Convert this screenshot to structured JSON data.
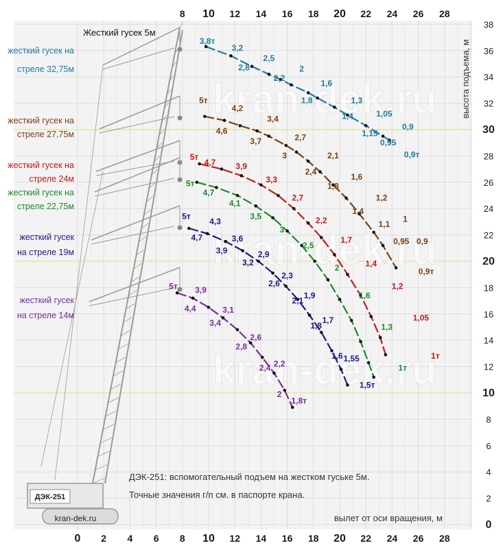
{
  "chart_data": {
    "type": "line",
    "title": "ДЭК-251: вспомогательный подъем на жестком гуське 5м.",
    "subtitle": "Точные значения г/п см. в паспорте крана.",
    "xlabel": "вылет от оси вращения, м",
    "ylabel": "высота подъема, м",
    "xlim": [
      0,
      29
    ],
    "ylim": [
      0,
      38
    ],
    "x_ticks_top": [
      "8",
      "10",
      "12",
      "14",
      "16",
      "18",
      "20",
      "22",
      "24",
      "26",
      "28"
    ],
    "x_ticks_bottom": [
      "0",
      "2",
      "4",
      "6",
      "8",
      "10",
      "12",
      "14",
      "16",
      "18",
      "20",
      "22",
      "24",
      "26",
      "28"
    ],
    "y_ticks": [
      "0",
      "2",
      "4",
      "6",
      "8",
      "10",
      "12",
      "14",
      "16",
      "18",
      "20",
      "22",
      "24",
      "26",
      "28",
      "30",
      "32",
      "34",
      "36",
      "38"
    ],
    "jib_label": "Жесткий гусек 5м",
    "crane_model": "ДЭК-251",
    "watermark": "kran-dek.ru",
    "site": "kran-dek.ru",
    "colors": {
      "grid": "#dddddd",
      "plot_bg": "#f3f3f3",
      "crane": "#9a9a9a"
    },
    "series": [
      {
        "name": "жесткий гусек на стреле 32,75м",
        "label_lines": [
          "жесткий гусек на",
          "стреле 32,75м"
        ],
        "color": "#1f7a9f",
        "points": [
          [
            9.8,
            36.3
          ],
          [
            11.7,
            35.6
          ],
          [
            13.3,
            34.8
          ],
          [
            14.6,
            34.2
          ],
          [
            15.5,
            33.8
          ],
          [
            16.3,
            33.4
          ],
          [
            17.6,
            32.8
          ],
          [
            18.3,
            32.4
          ],
          [
            19.6,
            31.7
          ],
          [
            20.6,
            31.1
          ],
          [
            22.0,
            30.3
          ],
          [
            23.3,
            29.5
          ],
          [
            23.8,
            29.2
          ]
        ],
        "load_labels": [
          {
            "text": "3,8т",
            "x": 9.9,
            "y": 36.5
          },
          {
            "text": "3,2",
            "x": 12.2,
            "y": 36.0
          },
          {
            "text": "2,8",
            "x": 12.7,
            "y": 34.5
          },
          {
            "text": "2,5",
            "x": 14.6,
            "y": 35.2
          },
          {
            "text": "2,2",
            "x": 15.4,
            "y": 33.7
          },
          {
            "text": "2",
            "x": 17.1,
            "y": 34.4
          },
          {
            "text": "1,8",
            "x": 17.5,
            "y": 32.0
          },
          {
            "text": "1,6",
            "x": 19.0,
            "y": 33.3
          },
          {
            "text": "1,4",
            "x": 20.6,
            "y": 30.8
          },
          {
            "text": "1,3",
            "x": 21.3,
            "y": 32.0
          },
          {
            "text": "1,15",
            "x": 22.3,
            "y": 29.5
          },
          {
            "text": "1,05",
            "x": 23.4,
            "y": 31.0
          },
          {
            "text": "0,95",
            "x": 23.7,
            "y": 28.8
          },
          {
            "text": "0,9",
            "x": 25.2,
            "y": 30.0
          },
          {
            "text": "0,9т",
            "x": 25.5,
            "y": 27.9
          }
        ]
      },
      {
        "name": "жесткий гусек на стреле 27,75м",
        "label_lines": [
          "жесткий гусек на",
          "стреле 27,75м"
        ],
        "color": "#7a3f14",
        "points": [
          [
            9.7,
            31.0
          ],
          [
            11.2,
            30.7
          ],
          [
            12.4,
            30.3
          ],
          [
            13.7,
            29.9
          ],
          [
            14.6,
            29.5
          ],
          [
            15.9,
            28.8
          ],
          [
            16.7,
            28.3
          ],
          [
            17.6,
            27.6
          ],
          [
            18.5,
            26.8
          ],
          [
            19.5,
            25.8
          ],
          [
            20.5,
            24.8
          ],
          [
            21.5,
            23.6
          ],
          [
            22.6,
            22.2
          ],
          [
            23.3,
            21.2
          ],
          [
            24.3,
            19.5
          ]
        ],
        "load_labels": [
          {
            "text": "5т",
            "x": 9.6,
            "y": 32.0
          },
          {
            "text": "4,2",
            "x": 12.2,
            "y": 31.4
          },
          {
            "text": "4,6",
            "x": 11.0,
            "y": 29.7
          },
          {
            "text": "3,4",
            "x": 14.9,
            "y": 30.6
          },
          {
            "text": "3,7",
            "x": 13.6,
            "y": 28.9
          },
          {
            "text": "3",
            "x": 15.8,
            "y": 27.8
          },
          {
            "text": "2,7",
            "x": 17.0,
            "y": 29.2
          },
          {
            "text": "2,4",
            "x": 17.8,
            "y": 26.6
          },
          {
            "text": "2,1",
            "x": 19.5,
            "y": 27.8
          },
          {
            "text": "1,8",
            "x": 19.5,
            "y": 25.5
          },
          {
            "text": "1,6",
            "x": 21.3,
            "y": 26.2
          },
          {
            "text": "1,4",
            "x": 21.4,
            "y": 23.6
          },
          {
            "text": "1,2",
            "x": 23.2,
            "y": 24.6
          },
          {
            "text": "1,1",
            "x": 23.4,
            "y": 22.6
          },
          {
            "text": "1",
            "x": 25.0,
            "y": 23.0
          },
          {
            "text": "0,95",
            "x": 24.7,
            "y": 21.3
          },
          {
            "text": "0,9",
            "x": 26.3,
            "y": 21.3
          },
          {
            "text": "0,9т",
            "x": 26.6,
            "y": 19.0
          }
        ]
      },
      {
        "name": "жесткий гусек на стреле 24м",
        "label_lines": [
          "жесткий гусек на",
          "стреле 24м"
        ],
        "color": "#c11a1a",
        "points": [
          [
            9.3,
            27.4
          ],
          [
            11.0,
            27.0
          ],
          [
            12.5,
            26.5
          ],
          [
            14.0,
            25.8
          ],
          [
            15.3,
            25.0
          ],
          [
            16.5,
            24.0
          ],
          [
            17.6,
            22.9
          ],
          [
            18.6,
            21.8
          ],
          [
            19.6,
            20.5
          ],
          [
            20.6,
            19.0
          ],
          [
            21.6,
            17.4
          ],
          [
            22.4,
            15.8
          ],
          [
            23.1,
            14.2
          ],
          [
            23.5,
            12.9
          ]
        ],
        "load_labels": [
          {
            "text": "5т",
            "x": 8.9,
            "y": 27.7
          },
          {
            "text": "4,7",
            "x": 10.1,
            "y": 27.3
          },
          {
            "text": "3,9",
            "x": 12.5,
            "y": 27.0
          },
          {
            "text": "3,3",
            "x": 14.8,
            "y": 26.0
          },
          {
            "text": "2,7",
            "x": 16.8,
            "y": 24.6
          },
          {
            "text": "2,2",
            "x": 18.6,
            "y": 22.9
          },
          {
            "text": "1,7",
            "x": 20.5,
            "y": 21.4
          },
          {
            "text": "1,4",
            "x": 22.4,
            "y": 19.6
          },
          {
            "text": "1,2",
            "x": 24.4,
            "y": 17.9
          },
          {
            "text": "1,05",
            "x": 26.2,
            "y": 15.5
          },
          {
            "text": "1т",
            "x": 27.3,
            "y": 12.6
          }
        ]
      },
      {
        "name": "жесткий гусек на стреле 22,75м",
        "label_lines": [
          "жесткий гусек на",
          "стреле 22,75м"
        ],
        "color": "#1c8a2a",
        "points": [
          [
            9.1,
            26.0
          ],
          [
            10.6,
            25.6
          ],
          [
            12.2,
            25.0
          ],
          [
            13.6,
            24.2
          ],
          [
            14.9,
            23.3
          ],
          [
            16.0,
            22.3
          ],
          [
            17.1,
            21.2
          ],
          [
            18.1,
            20.0
          ],
          [
            19.1,
            18.6
          ],
          [
            20.0,
            17.1
          ],
          [
            20.9,
            15.5
          ],
          [
            21.6,
            13.9
          ],
          [
            22.2,
            12.3
          ],
          [
            22.6,
            11.2
          ]
        ],
        "load_labels": [
          {
            "text": "5т",
            "x": 8.6,
            "y": 25.7
          },
          {
            "text": "4,7",
            "x": 10.0,
            "y": 25.0
          },
          {
            "text": "4,1",
            "x": 12.0,
            "y": 24.2
          },
          {
            "text": "3,5",
            "x": 13.6,
            "y": 23.2
          },
          {
            "text": "3",
            "x": 15.6,
            "y": 22.2
          },
          {
            "text": "2,5",
            "x": 17.6,
            "y": 21.0
          },
          {
            "text": "2",
            "x": 19.8,
            "y": 19.3
          },
          {
            "text": "1,6",
            "x": 21.9,
            "y": 17.2
          },
          {
            "text": "1,3",
            "x": 23.6,
            "y": 14.8
          },
          {
            "text": "1т",
            "x": 24.8,
            "y": 11.7
          }
        ]
      },
      {
        "name": "жесткий гусек на стреле 19м",
        "label_lines": [
          "жесткий гусек",
          "на стреле 19м"
        ],
        "color": "#1a1a8c",
        "points": [
          [
            8.5,
            22.5
          ],
          [
            9.9,
            22.1
          ],
          [
            11.3,
            21.5
          ],
          [
            12.6,
            20.8
          ],
          [
            13.8,
            20.0
          ],
          [
            14.9,
            19.1
          ],
          [
            15.9,
            18.1
          ],
          [
            16.8,
            17.1
          ],
          [
            17.7,
            15.9
          ],
          [
            18.6,
            14.6
          ],
          [
            19.4,
            13.2
          ],
          [
            20.1,
            11.8
          ],
          [
            20.6,
            10.6
          ]
        ],
        "load_labels": [
          {
            "text": "5т",
            "x": 8.3,
            "y": 23.2
          },
          {
            "text": "4,3",
            "x": 10.5,
            "y": 22.8
          },
          {
            "text": "4,7",
            "x": 9.1,
            "y": 21.6
          },
          {
            "text": "3,6",
            "x": 12.2,
            "y": 21.5
          },
          {
            "text": "3,9",
            "x": 11.0,
            "y": 20.6
          },
          {
            "text": "2,9",
            "x": 14.2,
            "y": 20.3
          },
          {
            "text": "3,2",
            "x": 13.0,
            "y": 19.7
          },
          {
            "text": "2,3",
            "x": 16.0,
            "y": 18.7
          },
          {
            "text": "2,6",
            "x": 15.0,
            "y": 18.1
          },
          {
            "text": "1,9",
            "x": 17.7,
            "y": 17.2
          },
          {
            "text": "2,1",
            "x": 16.8,
            "y": 16.8
          },
          {
            "text": "1,7",
            "x": 19.1,
            "y": 15.3
          },
          {
            "text": "1,8",
            "x": 18.2,
            "y": 14.9
          },
          {
            "text": "1,55",
            "x": 20.9,
            "y": 12.4
          },
          {
            "text": "1,6",
            "x": 19.8,
            "y": 12.6
          },
          {
            "text": "1,5т",
            "x": 22.1,
            "y": 10.4
          }
        ]
      },
      {
        "name": "жесткий гусек на стреле 14м",
        "label_lines": [
          "жесткий гусек",
          "на стреле 14м"
        ],
        "color": "#7b2c9c",
        "points": [
          [
            7.6,
            17.6
          ],
          [
            8.8,
            17.2
          ],
          [
            10.0,
            16.5
          ],
          [
            11.1,
            15.7
          ],
          [
            12.2,
            14.8
          ],
          [
            13.2,
            13.8
          ],
          [
            14.1,
            12.7
          ],
          [
            15.0,
            11.5
          ],
          [
            15.8,
            10.2
          ],
          [
            16.4,
            8.9
          ]
        ],
        "load_labels": [
          {
            "text": "5т",
            "x": 7.3,
            "y": 17.9
          },
          {
            "text": "3,9",
            "x": 9.4,
            "y": 17.6
          },
          {
            "text": "4,4",
            "x": 8.6,
            "y": 16.2
          },
          {
            "text": "3,1",
            "x": 11.5,
            "y": 16.1
          },
          {
            "text": "3,4",
            "x": 10.5,
            "y": 15.1
          },
          {
            "text": "2,6",
            "x": 13.6,
            "y": 14.0
          },
          {
            "text": "2,8",
            "x": 12.5,
            "y": 13.3
          },
          {
            "text": "2,2",
            "x": 15.4,
            "y": 12.0
          },
          {
            "text": "2,4",
            "x": 14.3,
            "y": 11.7
          },
          {
            "text": "2",
            "x": 15.4,
            "y": 9.7
          },
          {
            "text": "1,8т",
            "x": 16.9,
            "y": 9.2
          }
        ]
      }
    ]
  }
}
